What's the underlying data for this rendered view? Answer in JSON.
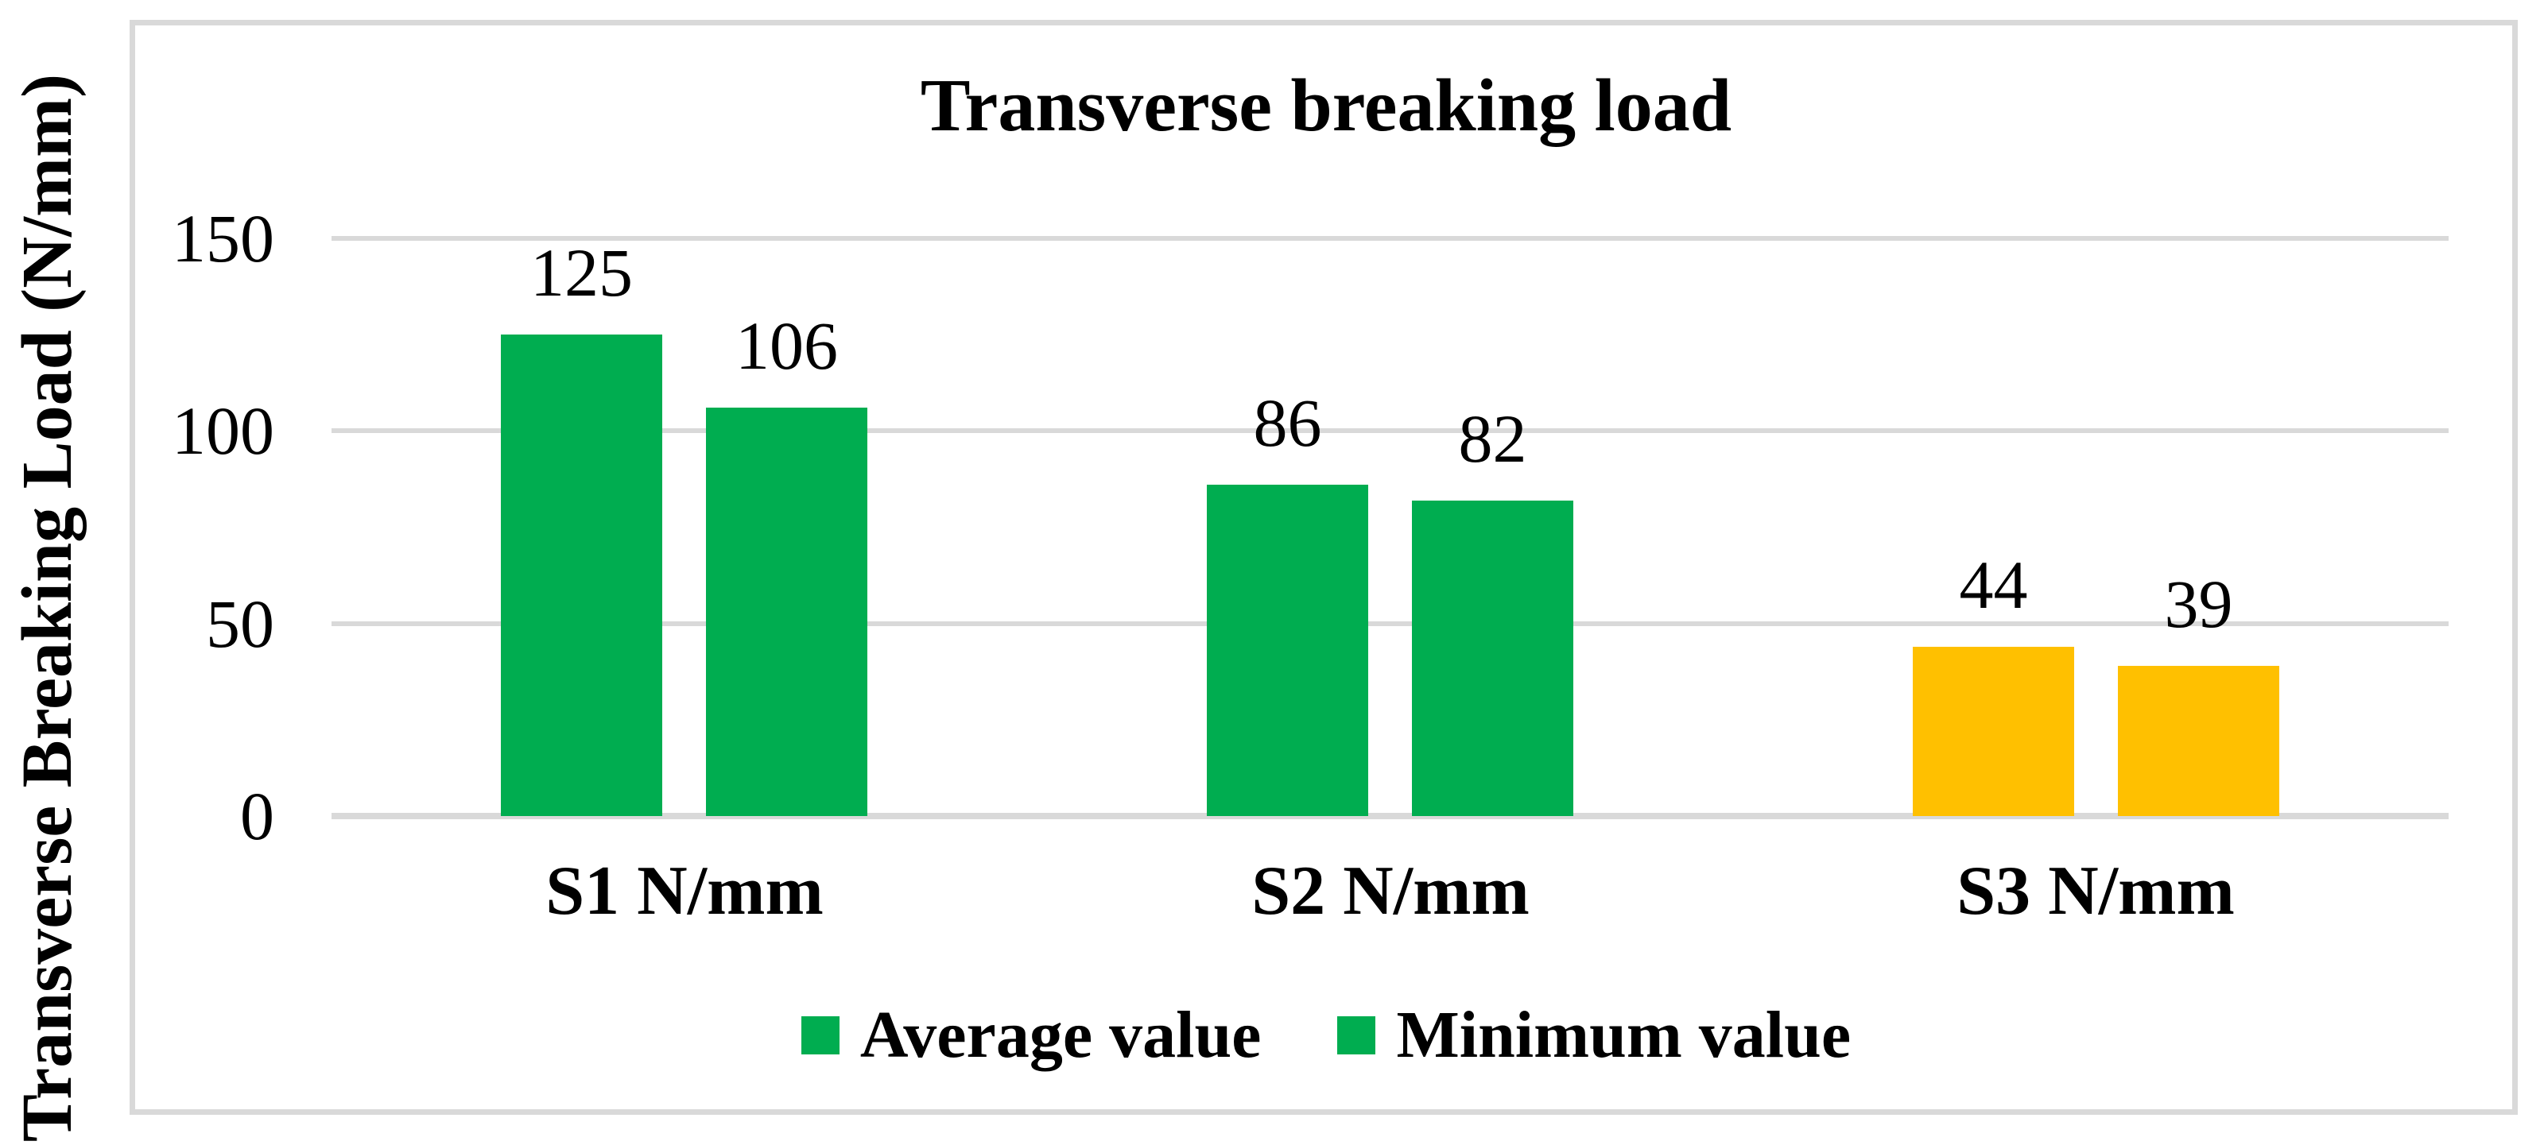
{
  "title": "Transverse breaking load",
  "y_axis": {
    "label": "Transverse Breaking Load (N/mm)",
    "tick_labels": [
      "150",
      "100",
      "50",
      "0"
    ]
  },
  "legend": {
    "items": [
      {
        "label": "Average value",
        "color": "#00AD50"
      },
      {
        "label": "Minimum value",
        "color": "#00AD50"
      }
    ]
  },
  "colors": {
    "green_bar": "#00AD50",
    "yellow_bar": "#FFC000",
    "gridline": "#D9D9D9",
    "frame_border": "#D9D9D9",
    "text": "#000000",
    "background": "#FFFFFF"
  },
  "chart_data": {
    "type": "bar",
    "title": "Transverse breaking load",
    "categories": [
      "S1 N/mm",
      "S2 N/mm",
      "S3 N/mm"
    ],
    "series": [
      {
        "name": "Average value",
        "values": [
          125,
          86,
          44
        ]
      },
      {
        "name": "Minimum value",
        "values": [
          106,
          82,
          39
        ]
      }
    ],
    "xlabel": "",
    "ylabel": "Transverse Breaking Load (N/mm)",
    "ylim": [
      0,
      150
    ],
    "yticks": [
      0,
      50,
      100,
      150
    ],
    "grid": true,
    "legend_position": "bottom-center",
    "bar_fill_by_category": [
      "#00AD50",
      "#00AD50",
      "#FFC000"
    ],
    "data_labels_shown": true
  }
}
